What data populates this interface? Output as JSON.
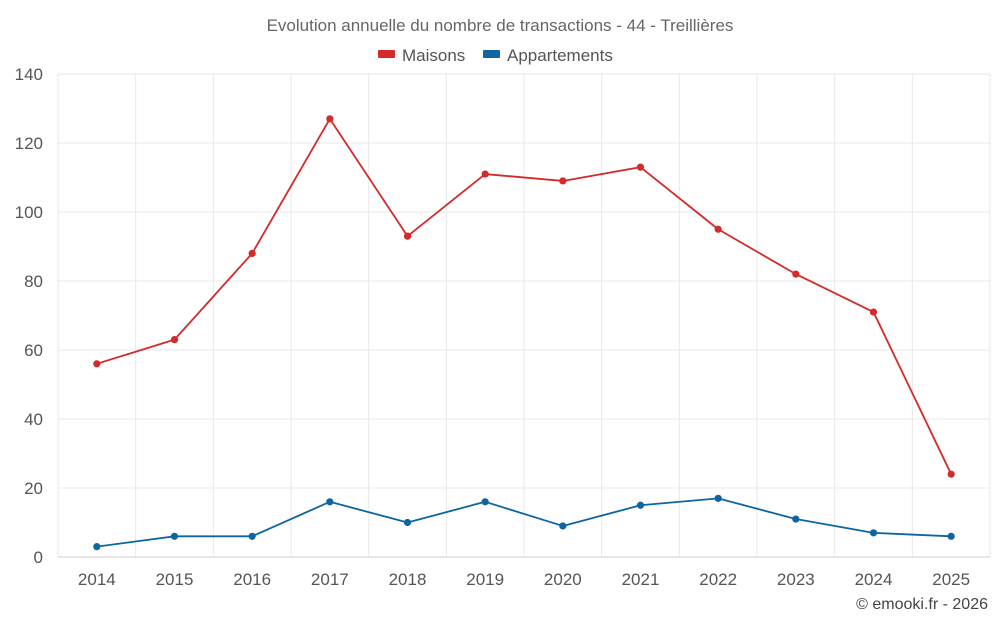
{
  "chart_data": {
    "type": "line",
    "title": "Evolution annuelle du nombre de transactions - 44 - Treillières",
    "categories": [
      "2014",
      "2015",
      "2016",
      "2017",
      "2018",
      "2019",
      "2020",
      "2021",
      "2022",
      "2023",
      "2024",
      "2025"
    ],
    "series": [
      {
        "name": "Maisons",
        "color": "#d42a2a",
        "values": [
          56,
          63,
          88,
          127,
          93,
          111,
          109,
          113,
          95,
          82,
          71,
          24
        ]
      },
      {
        "name": "Appartements",
        "color": "#0d66a0",
        "values": [
          3,
          6,
          6,
          16,
          10,
          16,
          9,
          15,
          17,
          11,
          7,
          6
        ]
      }
    ],
    "yticks": [
      "0",
      "20",
      "40",
      "60",
      "80",
      "100",
      "120",
      "140"
    ],
    "ylim": [
      0,
      140
    ],
    "grid": true,
    "legend": "top-center",
    "credit": "© emooki.fr - 2026"
  }
}
